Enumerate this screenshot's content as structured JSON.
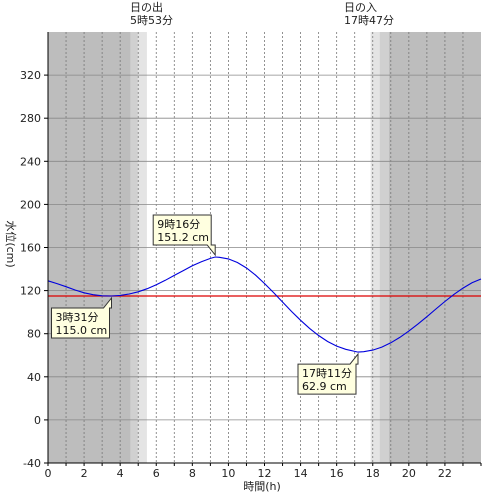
{
  "chart_data": {
    "type": "line",
    "xlabel": "時間(h)",
    "ylabel": "水位(cm)",
    "xlim": [
      0,
      24
    ],
    "ylim": [
      -40,
      360
    ],
    "x_ticks": [
      0,
      2,
      4,
      6,
      8,
      10,
      12,
      14,
      16,
      18,
      20,
      22
    ],
    "x_tick_labels": [
      "0",
      "2",
      "4",
      "6",
      "8",
      "10",
      "12",
      "14",
      "16",
      "18",
      "20",
      "22"
    ],
    "y_ticks": [
      -40,
      0,
      40,
      80,
      120,
      160,
      200,
      240,
      280,
      320
    ],
    "y_tick_labels": [
      "-40",
      "0",
      "40",
      "80",
      "120",
      "160",
      "200",
      "240",
      "280",
      "320"
    ],
    "grid": true,
    "colors": {
      "series": "#0000dd",
      "reference_line": "#dd0000",
      "night": "#bdbdbd",
      "twilight_dark": "#d0d0d0",
      "twilight_light": "#e4e4e4",
      "callout_fill": "#ffffe0"
    },
    "series": [
      {
        "x": [
          0,
          0.5,
          1,
          1.5,
          2,
          2.5,
          3,
          3.52,
          4,
          4.5,
          5,
          5.5,
          6,
          6.5,
          7,
          7.5,
          8,
          8.5,
          9,
          9.27,
          9.5,
          10,
          10.5,
          11,
          11.5,
          12,
          12.5,
          13,
          13.5,
          14,
          14.5,
          15,
          15.5,
          16,
          16.5,
          17.18,
          17.5,
          18,
          18.5,
          19,
          19.5,
          20,
          20.5,
          21,
          21.5,
          22,
          22.5,
          23,
          23.5,
          24
        ],
        "y": [
          129.1,
          126.5,
          123.6,
          120.6,
          118.0,
          116.2,
          115.2,
          115.0,
          115.5,
          116.8,
          118.9,
          121.8,
          125.5,
          129.6,
          134.1,
          138.6,
          143.0,
          146.8,
          149.9,
          151.2,
          150.9,
          149.4,
          146.1,
          141.0,
          134.4,
          126.6,
          118.2,
          109.4,
          100.6,
          92.4,
          84.9,
          78.3,
          72.8,
          68.5,
          65.5,
          62.9,
          63.3,
          64.8,
          67.6,
          71.6,
          76.6,
          82.4,
          88.9,
          95.8,
          102.9,
          109.9,
          116.5,
          122.3,
          127.2,
          130.8
        ]
      }
    ],
    "reference_line": {
      "y": 115.0
    },
    "sun": {
      "sunrise": {
        "title": "日の出",
        "time": "5時53分",
        "hour": 5.883
      },
      "sunset": {
        "title": "日の入",
        "time": "17時47分",
        "hour": 17.783
      }
    },
    "annotations": [
      {
        "time": "3時31分",
        "level": "115.0 cm",
        "x": 3.52,
        "y": 115.0,
        "position": "below-left"
      },
      {
        "time": "9時16分",
        "level": "151.2 cm",
        "x": 9.27,
        "y": 151.2,
        "position": "above-left"
      },
      {
        "time": "17時11分",
        "level": "62.9 cm",
        "x": 17.18,
        "y": 62.9,
        "position": "below-left"
      }
    ]
  }
}
